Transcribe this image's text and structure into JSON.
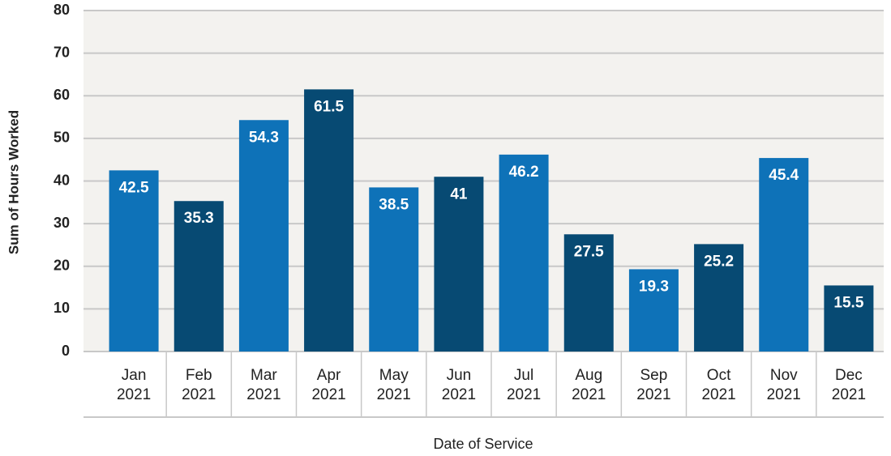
{
  "chart_data": {
    "type": "bar",
    "x_label": "Date of Service",
    "y_label": "Sum of Hours Worked",
    "categories": [
      "Jan 2021",
      "Feb 2021",
      "Mar 2021",
      "Apr 2021",
      "May 2021",
      "Jun 2021",
      "Jul 2021",
      "Aug 2021",
      "Sep 2021",
      "Oct 2021",
      "Nov 2021",
      "Dec 2021"
    ],
    "values": [
      42.5,
      35.3,
      54.3,
      61.5,
      38.5,
      41,
      46.2,
      27.5,
      19.3,
      25.2,
      45.4,
      15.5
    ],
    "colors": [
      "#0e72b8",
      "#074a73",
      "#0e72b8",
      "#074a73",
      "#0e72b8",
      "#074a73",
      "#0e72b8",
      "#074a73",
      "#0e72b8",
      "#074a73",
      "#0e72b8",
      "#074a73"
    ],
    "ylim": [
      0,
      80
    ],
    "yticks": [
      0,
      10,
      20,
      30,
      40,
      50,
      60,
      70,
      80
    ],
    "grid": true
  }
}
